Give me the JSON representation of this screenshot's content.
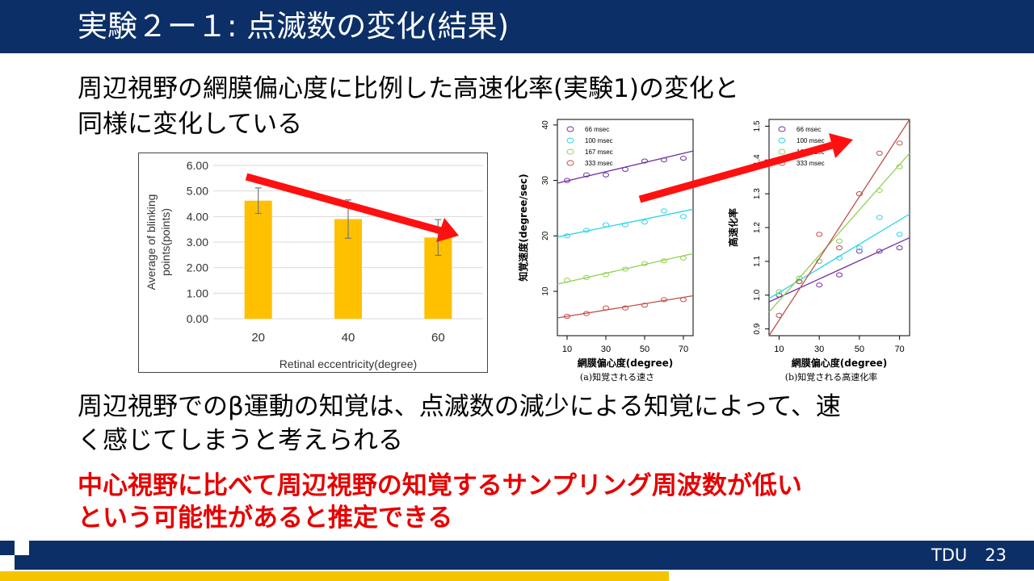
{
  "slide": {
    "title": "実験２ー１: 点滅数の変化(結果)",
    "para1_line1": "周辺視野の網膜偏心度に比例した高速化率(実験1)の変化と",
    "para1_line2": "同様に変化している",
    "para2_line1": "周辺視野でのβ運動の知覚は、点滅数の減少による知覚によって、速",
    "para2_line2": "く感じてしまうと考えられる",
    "conclusion_line1": "中心視野に比べて周辺視野の知覚するサンプリング周波数が低い",
    "conclusion_line2": "という可能性があると推定できる",
    "footer_org": "TDU",
    "page_number": "23"
  },
  "colors": {
    "navy": "#0b2f66",
    "yellow": "#f5c400",
    "accent_red": "#e60000",
    "bar": "#ffc000"
  },
  "chart_data": [
    {
      "type": "bar",
      "categories": [
        "20",
        "40",
        "60"
      ],
      "values": [
        4.62,
        3.9,
        3.18
      ],
      "errors": [
        0.5,
        0.75,
        0.7
      ],
      "yticks": [
        "0.00",
        "1.00",
        "2.00",
        "3.00",
        "4.00",
        "5.00",
        "6.00"
      ],
      "ylim": [
        0,
        6
      ],
      "xlabel": "Retinal eccentricity(degree)",
      "ylabel_line1": "Average of blinking",
      "ylabel_line2": "points(points)",
      "grid": true
    },
    {
      "type": "scatter",
      "xticks": [
        "10",
        "30",
        "50",
        "70"
      ],
      "yticks": [
        "10",
        "20",
        "30",
        "40"
      ],
      "xlim": [
        5,
        75
      ],
      "ylim": [
        2,
        41
      ],
      "xlabel": "網膜偏心度(degree)",
      "ylabel": "知覚速度(degree/sec)",
      "caption": "(a)知覚される速さ",
      "series": [
        {
          "name": "66 msec",
          "color": "#7030a0",
          "x": [
            10,
            20,
            30,
            40,
            50,
            60,
            70
          ],
          "y": [
            30,
            31,
            31,
            32,
            33.5,
            33.7,
            34
          ],
          "fit": [
            [
              5,
              29.5
            ],
            [
              75,
              35.3
            ]
          ]
        },
        {
          "name": "100 msec",
          "color": "#2ad4e8",
          "x": [
            10,
            20,
            30,
            40,
            50,
            60,
            70
          ],
          "y": [
            20,
            21,
            22,
            22,
            22.5,
            24.5,
            23.5
          ],
          "fit": [
            [
              5,
              19.8
            ],
            [
              75,
              24.8
            ]
          ]
        },
        {
          "name": "167 msec",
          "color": "#92d050",
          "x": [
            10,
            20,
            30,
            40,
            50,
            60,
            70
          ],
          "y": [
            12,
            12.5,
            13,
            14,
            15,
            15.5,
            16
          ],
          "fit": [
            [
              5,
              11.3
            ],
            [
              75,
              16.8
            ]
          ]
        },
        {
          "name": "333 msec",
          "color": "#c0504d",
          "x": [
            10,
            20,
            30,
            40,
            50,
            60,
            70
          ],
          "y": [
            5.5,
            6,
            7,
            7,
            7.5,
            8.5,
            8.5
          ],
          "fit": [
            [
              5,
              5.2
            ],
            [
              75,
              9.2
            ]
          ]
        }
      ]
    },
    {
      "type": "scatter",
      "xticks": [
        "10",
        "30",
        "50",
        "70"
      ],
      "yticks": [
        "0.9",
        "1.0",
        "1.1",
        "1.2",
        "1.3",
        "1.4",
        "1.5"
      ],
      "xlim": [
        5,
        75
      ],
      "ylim": [
        0.88,
        1.52
      ],
      "xlabel": "網膜偏心度(degree)",
      "ylabel": "高速化率",
      "caption": "(b)知覚される高速化率",
      "series": [
        {
          "name": "66 msec",
          "color": "#7030a0",
          "x": [
            10,
            20,
            30,
            40,
            50,
            60,
            70
          ],
          "y": [
            1.0,
            1.04,
            1.03,
            1.06,
            1.13,
            1.13,
            1.14
          ],
          "fit": [
            [
              5,
              0.98
            ],
            [
              75,
              1.17
            ]
          ]
        },
        {
          "name": "100 msec",
          "color": "#2ad4e8",
          "x": [
            10,
            20,
            30,
            40,
            50,
            60,
            70
          ],
          "y": [
            1.01,
            1.05,
            1.1,
            1.11,
            1.14,
            1.23,
            1.18
          ],
          "fit": [
            [
              5,
              0.99
            ],
            [
              75,
              1.24
            ]
          ]
        },
        {
          "name": "167 msec",
          "color": "#92d050",
          "x": [
            10,
            20,
            30,
            40,
            50,
            60,
            70
          ],
          "y": [
            1.01,
            1.05,
            1.1,
            1.16,
            1.3,
            1.31,
            1.38
          ],
          "fit": [
            [
              5,
              0.95
            ],
            [
              75,
              1.42
            ]
          ]
        },
        {
          "name": "333 msec",
          "color": "#c0504d",
          "x": [
            10,
            20,
            30,
            40,
            50,
            60,
            70
          ],
          "y": [
            0.94,
            1.04,
            1.18,
            1.14,
            1.3,
            1.42,
            1.45
          ],
          "fit": [
            [
              5,
              0.88
            ],
            [
              75,
              1.52
            ]
          ]
        }
      ]
    }
  ]
}
